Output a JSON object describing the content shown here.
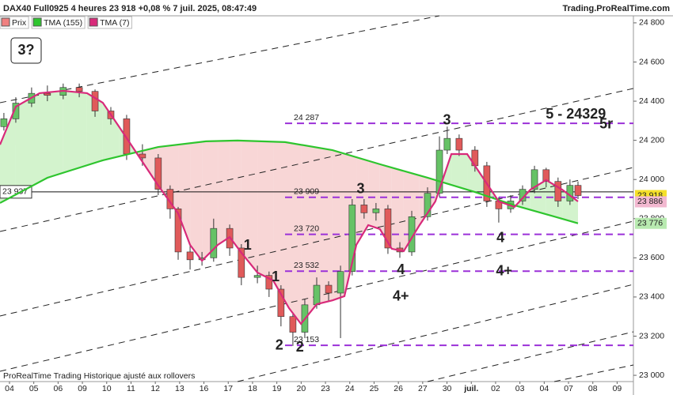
{
  "header": {
    "title": "DAX40 Full0925 4 heures 23 918 +0,08 % 7 juil. 2025, 08:47:49",
    "site": "Trading.ProRealTime.com",
    "badge": "3?",
    "footer": "ProRealTime Trading  Historique ajusté aux rollovers"
  },
  "chart_data": {
    "type": "candlestick",
    "xlim": [
      -0.39,
      25.67
    ],
    "ylim": [
      22968,
      24836
    ],
    "xticks": [
      {
        "value": 0,
        "label": "04"
      },
      {
        "value": 1,
        "label": "05"
      },
      {
        "value": 2,
        "label": "06"
      },
      {
        "value": 3,
        "label": "09"
      },
      {
        "value": 4,
        "label": "10"
      },
      {
        "value": 5,
        "label": "11"
      },
      {
        "value": 6,
        "label": "12"
      },
      {
        "value": 7,
        "label": "13"
      },
      {
        "value": 8,
        "label": "16"
      },
      {
        "value": 9,
        "label": "17"
      },
      {
        "value": 10,
        "label": "18"
      },
      {
        "value": 11,
        "label": "19"
      },
      {
        "value": 12,
        "label": "20"
      },
      {
        "value": 13,
        "label": "23"
      },
      {
        "value": 14,
        "label": "24"
      },
      {
        "value": 15,
        "label": "25"
      },
      {
        "value": 16,
        "label": "26"
      },
      {
        "value": 17,
        "label": "27"
      },
      {
        "value": 18,
        "label": "30"
      },
      {
        "value": 19,
        "label": "juil."
      },
      {
        "value": 20,
        "label": "02"
      },
      {
        "value": 21,
        "label": "03"
      },
      {
        "value": 22,
        "label": "04"
      },
      {
        "value": 23,
        "label": "07"
      },
      {
        "value": 24,
        "label": "08"
      },
      {
        "value": 25,
        "label": "09"
      }
    ],
    "yticks": [
      {
        "value": 24800,
        "label": "24 800"
      },
      {
        "value": 24600,
        "label": "24 600"
      },
      {
        "value": 24400,
        "label": "24 400"
      },
      {
        "value": 24200,
        "label": "24 200"
      },
      {
        "value": 24000,
        "label": "24 000"
      },
      {
        "value": 23800,
        "label": "23 800"
      },
      {
        "value": 23600,
        "label": "23 600"
      },
      {
        "value": 23400,
        "label": "23 400"
      },
      {
        "value": 23200,
        "label": "23 200"
      },
      {
        "value": 23000,
        "label": "23 000"
      }
    ],
    "candles": {
      "name": "Prix",
      "up_color": "#66c266",
      "down_color": "#e05a5a",
      "x": [
        -0.23,
        0.26,
        0.91,
        1.56,
        2.21,
        2.87,
        3.52,
        4.17,
        4.82,
        5.47,
        6.12,
        6.61,
        6.94,
        7.43,
        7.92,
        8.4,
        9.06,
        9.54,
        10.2,
        10.68,
        11.17,
        11.66,
        12.15,
        12.64,
        13.13,
        13.62,
        14.1,
        14.59,
        15.08,
        15.57,
        16.06,
        16.55,
        17.2,
        17.69,
        18.01,
        18.5,
        19.15,
        19.64,
        20.13,
        20.62,
        21.11,
        21.6,
        22.08,
        22.57,
        23.06,
        23.39
      ],
      "open": [
        24270,
        24310,
        24390,
        24440,
        24430,
        24470,
        24450,
        24350,
        24310,
        24130,
        24110,
        23950,
        23850,
        23630,
        23590,
        23600,
        23750,
        23650,
        23500,
        23510,
        23440,
        23300,
        23220,
        23360,
        23460,
        23420,
        23530,
        23870,
        23830,
        23850,
        23650,
        23630,
        23810,
        23930,
        24150,
        24210,
        24150,
        24070,
        23890,
        23850,
        23890,
        23950,
        24050,
        23990,
        23890,
        23970
      ],
      "high": [
        24340,
        24420,
        24470,
        24480,
        24490,
        24490,
        24460,
        24370,
        24330,
        24180,
        24130,
        23970,
        23860,
        23660,
        23630,
        23800,
        23770,
        23670,
        23560,
        23530,
        23460,
        23320,
        23390,
        23500,
        23480,
        23560,
        23900,
        23900,
        23880,
        23870,
        23680,
        23840,
        23960,
        24220,
        24270,
        24230,
        24170,
        24090,
        23910,
        23920,
        23970,
        24070,
        24060,
        24010,
        24000,
        23990
      ],
      "low": [
        24250,
        24290,
        24370,
        24400,
        24410,
        24420,
        24320,
        24280,
        24100,
        24070,
        23920,
        23800,
        23590,
        23540,
        23560,
        23580,
        23610,
        23460,
        23470,
        23400,
        23250,
        23150,
        23190,
        23340,
        23380,
        23190,
        23510,
        23800,
        23790,
        23620,
        23600,
        23610,
        23790,
        23910,
        24130,
        24120,
        24040,
        23860,
        23780,
        23830,
        23870,
        23930,
        23960,
        23860,
        23870,
        23900
      ],
      "close": [
        24310,
        24390,
        24440,
        24430,
        24470,
        24450,
        24350,
        24310,
        24130,
        24110,
        23950,
        23850,
        23630,
        23590,
        23600,
        23750,
        23650,
        23500,
        23510,
        23440,
        23300,
        23220,
        23360,
        23460,
        23420,
        23530,
        23870,
        23830,
        23850,
        23650,
        23630,
        23810,
        23930,
        24150,
        24210,
        24150,
        24070,
        23890,
        23850,
        23890,
        23950,
        24050,
        23990,
        23890,
        23970,
        23918
      ]
    },
    "series": [
      {
        "name": "TMA (155)",
        "color": "#2ec52e",
        "x": [
          -0.39,
          1.56,
          3.84,
          6.12,
          8.08,
          9.38,
          11.34,
          13.29,
          15.24,
          17.2,
          19.15,
          20.78,
          22.41,
          23.39
        ],
        "values": [
          23880,
          24009,
          24098,
          24166,
          24195,
          24199,
          24191,
          24150,
          24078,
          24009,
          23936,
          23868,
          23811,
          23776
        ]
      },
      {
        "name": "TMA (7)",
        "color": "#d82a7a",
        "x": [
          -0.39,
          0.26,
          1.24,
          2.21,
          3.19,
          3.84,
          4.5,
          5.15,
          6.12,
          6.94,
          7.43,
          7.92,
          8.57,
          9.06,
          9.54,
          10.2,
          10.85,
          11.5,
          11.99,
          12.64,
          13.29,
          13.78,
          14.27,
          14.76,
          15.24,
          15.73,
          16.22,
          16.87,
          17.52,
          18.18,
          18.83,
          19.48,
          20.13,
          20.78,
          21.43,
          22.08,
          22.74,
          23.39
        ],
        "values": [
          24178,
          24372,
          24441,
          24453,
          24441,
          24392,
          24271,
          24150,
          23969,
          23827,
          23666,
          23585,
          23666,
          23706,
          23626,
          23525,
          23484,
          23343,
          23263,
          23363,
          23383,
          23404,
          23666,
          23767,
          23747,
          23646,
          23634,
          23767,
          23888,
          24130,
          24130,
          24009,
          23888,
          23860,
          23948,
          23997,
          23948,
          23888
        ]
      }
    ],
    "levels": {
      "color": "#9b30d8",
      "items": [
        {
          "value": 24287,
          "label": "24 287"
        },
        {
          "value": 23909,
          "label": "23 909"
        },
        {
          "value": 23720,
          "label": "23 720"
        },
        {
          "value": 23532,
          "label": "23 532"
        },
        {
          "value": 23153,
          "label": "23 153"
        }
      ]
    },
    "last_line": {
      "value": 23937,
      "label": "23 937"
    },
    "price_tags": [
      {
        "value": 23918,
        "label": "23 918",
        "color": "#f5e02a"
      },
      {
        "value": 23886,
        "label": "23 886",
        "color": "#f2b8d0"
      },
      {
        "value": 23776,
        "label": "23 776",
        "color": "#b8eab0"
      }
    ],
    "annotations": [
      {
        "text": "1",
        "x": 9.8,
        "y": 23660,
        "color": "#8a2bc8"
      },
      {
        "text": "1",
        "x": 10.95,
        "y": 23500,
        "color": "#1e9a1e"
      },
      {
        "text": "2",
        "x": 11.1,
        "y": 23150,
        "color": "#8a2bc8"
      },
      {
        "text": "2",
        "x": 11.95,
        "y": 23140,
        "color": "#1e9a1e"
      },
      {
        "text": "3",
        "x": 14.45,
        "y": 23950,
        "color": "#1e9a1e"
      },
      {
        "text": "3",
        "x": 18.0,
        "y": 24300,
        "color": "#8a2bc8"
      },
      {
        "text": "4",
        "x": 16.1,
        "y": 23535,
        "color": "#1e9a1e"
      },
      {
        "text": "4+",
        "x": 16.1,
        "y": 23400,
        "color": "#1e9a1e"
      },
      {
        "text": "4",
        "x": 20.2,
        "y": 23700,
        "color": "#8a2bc8"
      },
      {
        "text": "4+",
        "x": 20.35,
        "y": 23530,
        "color": "#8a2bc8"
      },
      {
        "text": "5 - 24329",
        "x": 23.3,
        "y": 24330,
        "color": "#1e9a1e"
      },
      {
        "text": "5r",
        "x": 24.55,
        "y": 24280,
        "color": "#8a2bc8"
      }
    ]
  }
}
